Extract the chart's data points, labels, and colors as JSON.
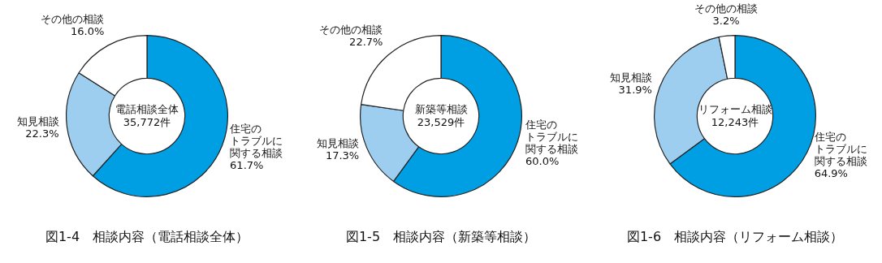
{
  "chart_data": [
    {
      "type": "donut",
      "title": "図1-4　相談内容（電話相談全体）",
      "categories": [
        "住宅のトラブルに関する相談",
        "知見相談",
        "その他の相談"
      ],
      "values": [
        61.7,
        22.3,
        16.0
      ],
      "value_labels": [
        "61.7%",
        "22.3%",
        "16.0%"
      ],
      "colors": [
        "#009fe3",
        "#9dcdef",
        "#ffffff"
      ],
      "annotations": [
        "電話相談全体\n35,772件"
      ],
      "legend": false
    },
    {
      "type": "donut",
      "title": "図1-5　相談内容（新築等相談）",
      "categories": [
        "住宅のトラブルに関する相談",
        "知見相談",
        "その他の相談"
      ],
      "values": [
        60.0,
        17.3,
        22.7
      ],
      "value_labels": [
        "60.0%",
        "17.3%",
        "22.7%"
      ],
      "colors": [
        "#009fe3",
        "#9dcdef",
        "#ffffff"
      ],
      "annotations": [
        "新築等相談\n23,529件"
      ],
      "legend": false
    },
    {
      "type": "donut",
      "title": "図1-6　相談内容（リフォーム相談）",
      "categories": [
        "住宅のトラブルに関する相談",
        "知見相談",
        "その他の相談"
      ],
      "values": [
        64.9,
        31.9,
        3.2
      ],
      "value_labels": [
        "64.9%",
        "31.9%",
        "3.2%"
      ],
      "colors": [
        "#009fe3",
        "#9dcdef",
        "#ffffff"
      ],
      "annotations": [
        "リフォーム相談\n12,243件"
      ],
      "legend": false
    }
  ]
}
